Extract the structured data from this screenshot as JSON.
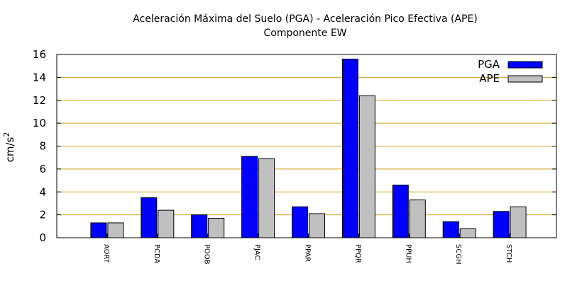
{
  "chart_data": {
    "type": "bar",
    "title": "Aceleración Máxima del Suelo (PGA) -  Aceleración Pico Efectiva (APE)",
    "subtitle": "Componente EW",
    "xlabel": "",
    "ylabel": "cm/s",
    "ylabel_superscript": "2",
    "ylim": [
      0,
      16
    ],
    "yticks": [
      0,
      2,
      4,
      6,
      8,
      10,
      12,
      14,
      16
    ],
    "grid": true,
    "legend_position": "top-right",
    "categories": [
      "AORT",
      "PCDA",
      "POOB",
      "PJAC",
      "PPAR",
      "PPQR",
      "PPUH",
      "SCGH",
      "STCH"
    ],
    "series": [
      {
        "name": "PGA",
        "color": "#0000ff",
        "values": [
          1.3,
          3.5,
          2.0,
          7.1,
          2.7,
          15.6,
          4.6,
          1.4,
          2.3
        ]
      },
      {
        "name": "APE",
        "color": "#c0c0c0",
        "values": [
          1.3,
          2.4,
          1.7,
          6.9,
          2.1,
          12.4,
          3.3,
          0.8,
          2.7
        ]
      }
    ],
    "colors": {
      "grid": "#d4a017",
      "axis": "#000000"
    }
  }
}
